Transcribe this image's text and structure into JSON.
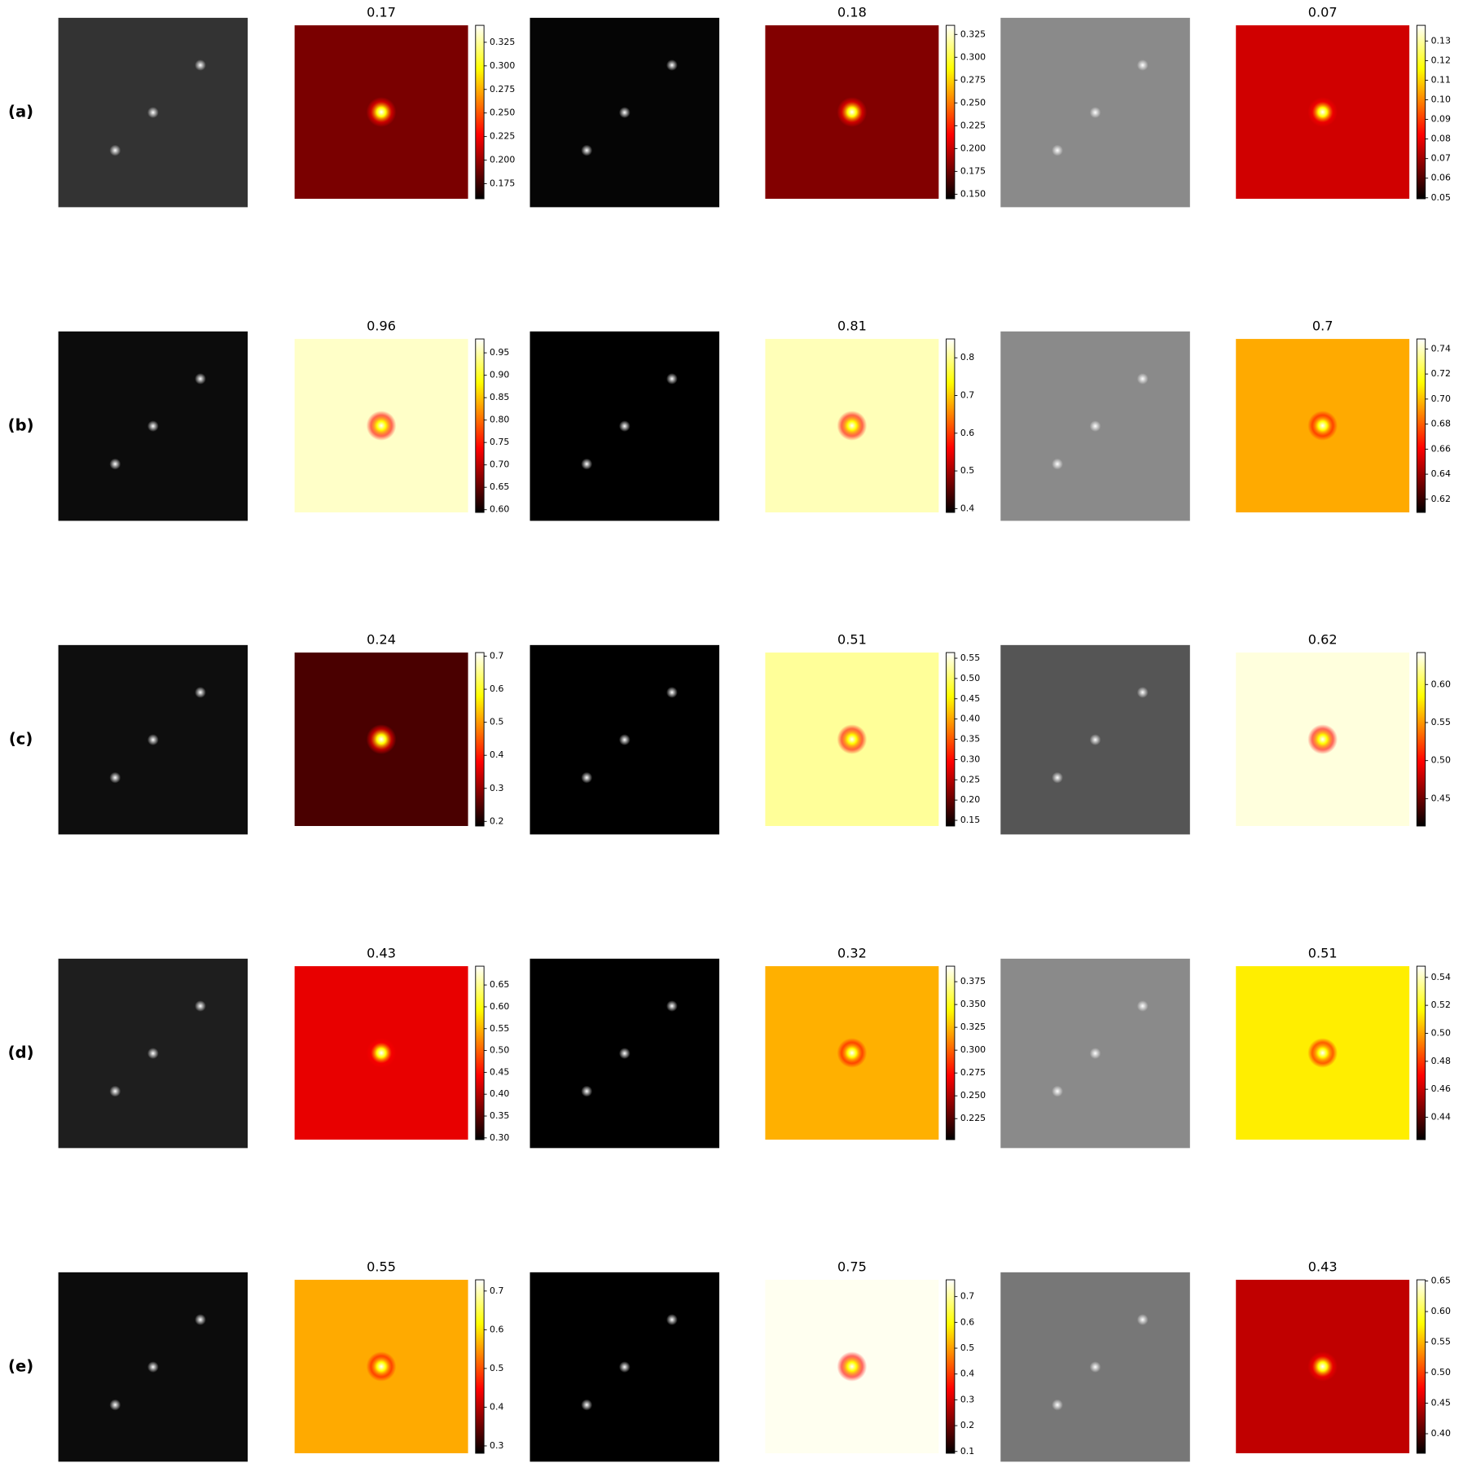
{
  "rows": [
    {
      "label": "(a)",
      "images": [
        {
          "color": "#333333"
        },
        {
          "color": "#050505"
        },
        {
          "color": "#8a8a8a"
        }
      ],
      "heatmaps": [
        {
          "title": "0.17",
          "color": "#7a0000",
          "ylim": [
            0.159,
            0.343
          ],
          "ticks": [
            0.175,
            {
              "value": 0.2,
              "label": "0.200"
            },
            0.225,
            {
              "value": 0.25,
              "label": "0.250"
            },
            0.275,
            {
              "value": 0.3,
              "label": "0.300"
            },
            0.325
          ]
        },
        {
          "title": "0.18",
          "color": "#820000",
          "ylim": [
            0.145,
            0.335
          ],
          "ticks": [
            {
              "value": 0.15,
              "label": "0.150"
            },
            0.175,
            {
              "value": 0.2,
              "label": "0.200"
            },
            0.225,
            {
              "value": 0.25,
              "label": "0.250"
            },
            0.275,
            {
              "value": 0.3,
              "label": "0.300"
            },
            0.325
          ]
        },
        {
          "title": "0.07",
          "color": "#d00000",
          "ylim": [
            0.0495,
            0.138
          ],
          "ticks": [
            0.05,
            0.06,
            0.07,
            0.08,
            0.09,
            {
              "value": 0.1,
              "label": "0.10"
            },
            0.11,
            0.12,
            0.13
          ]
        }
      ]
    },
    {
      "label": "(b)",
      "images": [
        {
          "color": "#0c0c0c"
        },
        {
          "color": "#000000"
        },
        {
          "color": "#8a8a8a"
        }
      ],
      "heatmaps": [
        {
          "title": "0.96",
          "color": "#ffffc8",
          "ylim": [
            0.594,
            0.981
          ],
          "ticks": [
            {
              "value": 0.6,
              "label": "0.60"
            },
            0.65,
            {
              "value": 0.7,
              "label": "0.70"
            },
            0.75,
            {
              "value": 0.8,
              "label": "0.80"
            },
            0.85,
            {
              "value": 0.9,
              "label": "0.90"
            },
            0.95
          ]
        },
        {
          "title": "0.81",
          "color": "#ffffb8",
          "ylim": [
            0.39,
            0.85
          ],
          "ticks": [
            0.4,
            0.5,
            0.6,
            0.7,
            0.8
          ]
        },
        {
          "title": "0.7",
          "color": "#ffaa00",
          "ylim": [
            0.6095,
            0.748
          ],
          "ticks": [
            0.62,
            0.64,
            0.66,
            0.68,
            {
              "value": 0.7,
              "label": "0.70"
            },
            0.72,
            0.74
          ]
        }
      ]
    },
    {
      "label": "(c)",
      "images": [
        {
          "color": "#0e0e0e"
        },
        {
          "color": "#000000"
        },
        {
          "color": "#555555"
        }
      ],
      "heatmaps": [
        {
          "title": "0.24",
          "color": "#4a0000",
          "ylim": [
            0.186,
            0.711
          ],
          "ticks": [
            0.2,
            0.3,
            0.4,
            0.5,
            0.6,
            0.7
          ]
        },
        {
          "title": "0.51",
          "color": "#ffff99",
          "ylim": [
            0.136,
            0.564
          ],
          "ticks": [
            0.15,
            {
              "value": 0.2,
              "label": "0.20"
            },
            0.25,
            {
              "value": 0.3,
              "label": "0.30"
            },
            0.35,
            {
              "value": 0.4,
              "label": "0.40"
            },
            0.45,
            {
              "value": 0.5,
              "label": "0.50"
            },
            0.55
          ]
        },
        {
          "title": "0.62",
          "color": "#ffffdd",
          "ylim": [
            0.414,
            0.642
          ],
          "ticks": [
            0.45,
            {
              "value": 0.5,
              "label": "0.50"
            },
            0.55,
            {
              "value": 0.6,
              "label": "0.60"
            }
          ]
        }
      ]
    },
    {
      "label": "(d)",
      "images": [
        {
          "color": "#1e1e1e"
        },
        {
          "color": "#000000"
        },
        {
          "color": "#8a8a8a"
        }
      ],
      "heatmaps": [
        {
          "title": "0.43",
          "color": "#e80000",
          "ylim": [
            0.296,
            0.693
          ],
          "ticks": [
            {
              "value": 0.3,
              "label": "0.30"
            },
            0.35,
            {
              "value": 0.4,
              "label": "0.40"
            },
            0.45,
            {
              "value": 0.5,
              "label": "0.50"
            },
            0.55,
            {
              "value": 0.6,
              "label": "0.60"
            },
            0.65
          ]
        },
        {
          "title": "0.32",
          "color": "#ffb000",
          "ylim": [
            0.202,
            0.392
          ],
          "ticks": [
            0.225,
            {
              "value": 0.25,
              "label": "0.250"
            },
            0.275,
            {
              "value": 0.3,
              "label": "0.300"
            },
            0.325,
            {
              "value": 0.35,
              "label": "0.350"
            },
            0.375
          ]
        },
        {
          "title": "0.51",
          "color": "#ffee00",
          "ylim": [
            0.424,
            0.548
          ],
          "ticks": [
            0.44,
            0.46,
            0.48,
            {
              "value": 0.5,
              "label": "0.50"
            },
            0.52,
            0.54
          ]
        }
      ]
    },
    {
      "label": "(e)",
      "images": [
        {
          "color": "#0c0c0c"
        },
        {
          "color": "#000000"
        },
        {
          "color": "#777777"
        }
      ],
      "heatmaps": [
        {
          "title": "0.55",
          "color": "#ffaa00",
          "ylim": [
            0.281,
            0.729
          ],
          "ticks": [
            0.3,
            0.4,
            0.5,
            0.6,
            0.7
          ]
        },
        {
          "title": "0.75",
          "color": "#fffff0",
          "ylim": [
            0.093,
            0.765
          ],
          "ticks": [
            0.1,
            0.2,
            0.3,
            0.4,
            0.5,
            0.6,
            0.7
          ]
        },
        {
          "title": "0.43",
          "color": "#c00000",
          "ylim": [
            0.368,
            0.652
          ],
          "ticks": [
            {
              "value": 0.4,
              "label": "0.40"
            },
            0.45,
            {
              "value": 0.5,
              "label": "0.50"
            },
            0.55,
            {
              "value": 0.6,
              "label": "0.60"
            },
            0.65
          ]
        }
      ]
    }
  ]
}
